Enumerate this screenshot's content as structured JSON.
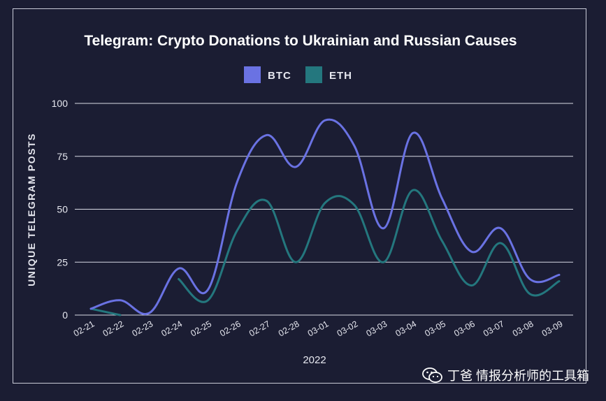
{
  "chart_data": {
    "type": "line",
    "title": "Telegram: Crypto Donations to Ukrainian and Russian Causes",
    "xlabel": "2022",
    "ylabel": "UNIQUE TELEGRAM POSTS",
    "ylim": [
      0,
      100
    ],
    "yticks": [
      "0",
      "25",
      "50",
      "75",
      "100"
    ],
    "categories": [
      "02-21",
      "02-22",
      "02-23",
      "02-24",
      "02-25",
      "02-26",
      "02-27",
      "02-28",
      "03-01",
      "03-02",
      "03-03",
      "03-04",
      "03-05",
      "03-06",
      "03-07",
      "03-08",
      "03-09"
    ],
    "legend_position": "top-center",
    "grid": true,
    "series": [
      {
        "name": "BTC",
        "color": "#6a72e3",
        "values": [
          3,
          7,
          1,
          22,
          12,
          63,
          85,
          70,
          92,
          80,
          41,
          86,
          55,
          30,
          41,
          17,
          19
        ]
      },
      {
        "name": "ETH",
        "color": "#24777e",
        "values": [
          3,
          0,
          null,
          17,
          7,
          40,
          54,
          25,
          53,
          52,
          25,
          59,
          35,
          14,
          34,
          10,
          16
        ]
      }
    ]
  },
  "watermark": {
    "text": "丁爸 情报分析师的工具箱",
    "icon": "wechat-icon"
  }
}
